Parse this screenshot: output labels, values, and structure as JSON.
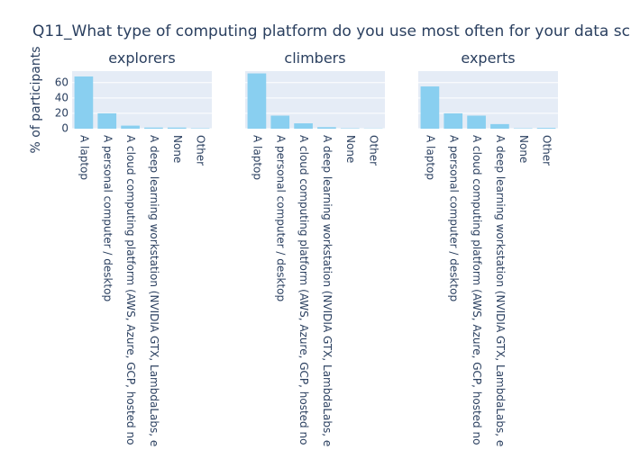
{
  "chart_data": {
    "type": "bar",
    "title": "Q11_What type of computing platform do you use most often for your data sc",
    "ylabel": "% of participants",
    "categories": [
      "A laptop",
      "A personal computer / desktop",
      "A cloud computing platform (AWS, Azure, GCP, hosted no",
      "A deep learning workstation (NVIDIA GTX, LambdaLabs, e",
      "None",
      "Other"
    ],
    "color": "#89cff0",
    "grid": true,
    "ylim": [
      0,
      75
    ],
    "yticks": [
      0,
      20,
      40,
      60
    ],
    "subplots": [
      {
        "title": "explorers",
        "values": [
          68,
          20,
          4,
          1.5,
          1.5,
          0.5
        ]
      },
      {
        "title": "climbers",
        "values": [
          72,
          17,
          7,
          2,
          0.5,
          0.3
        ]
      },
      {
        "title": "experts",
        "values": [
          55,
          20,
          17,
          6,
          0.5,
          1
        ]
      }
    ]
  }
}
